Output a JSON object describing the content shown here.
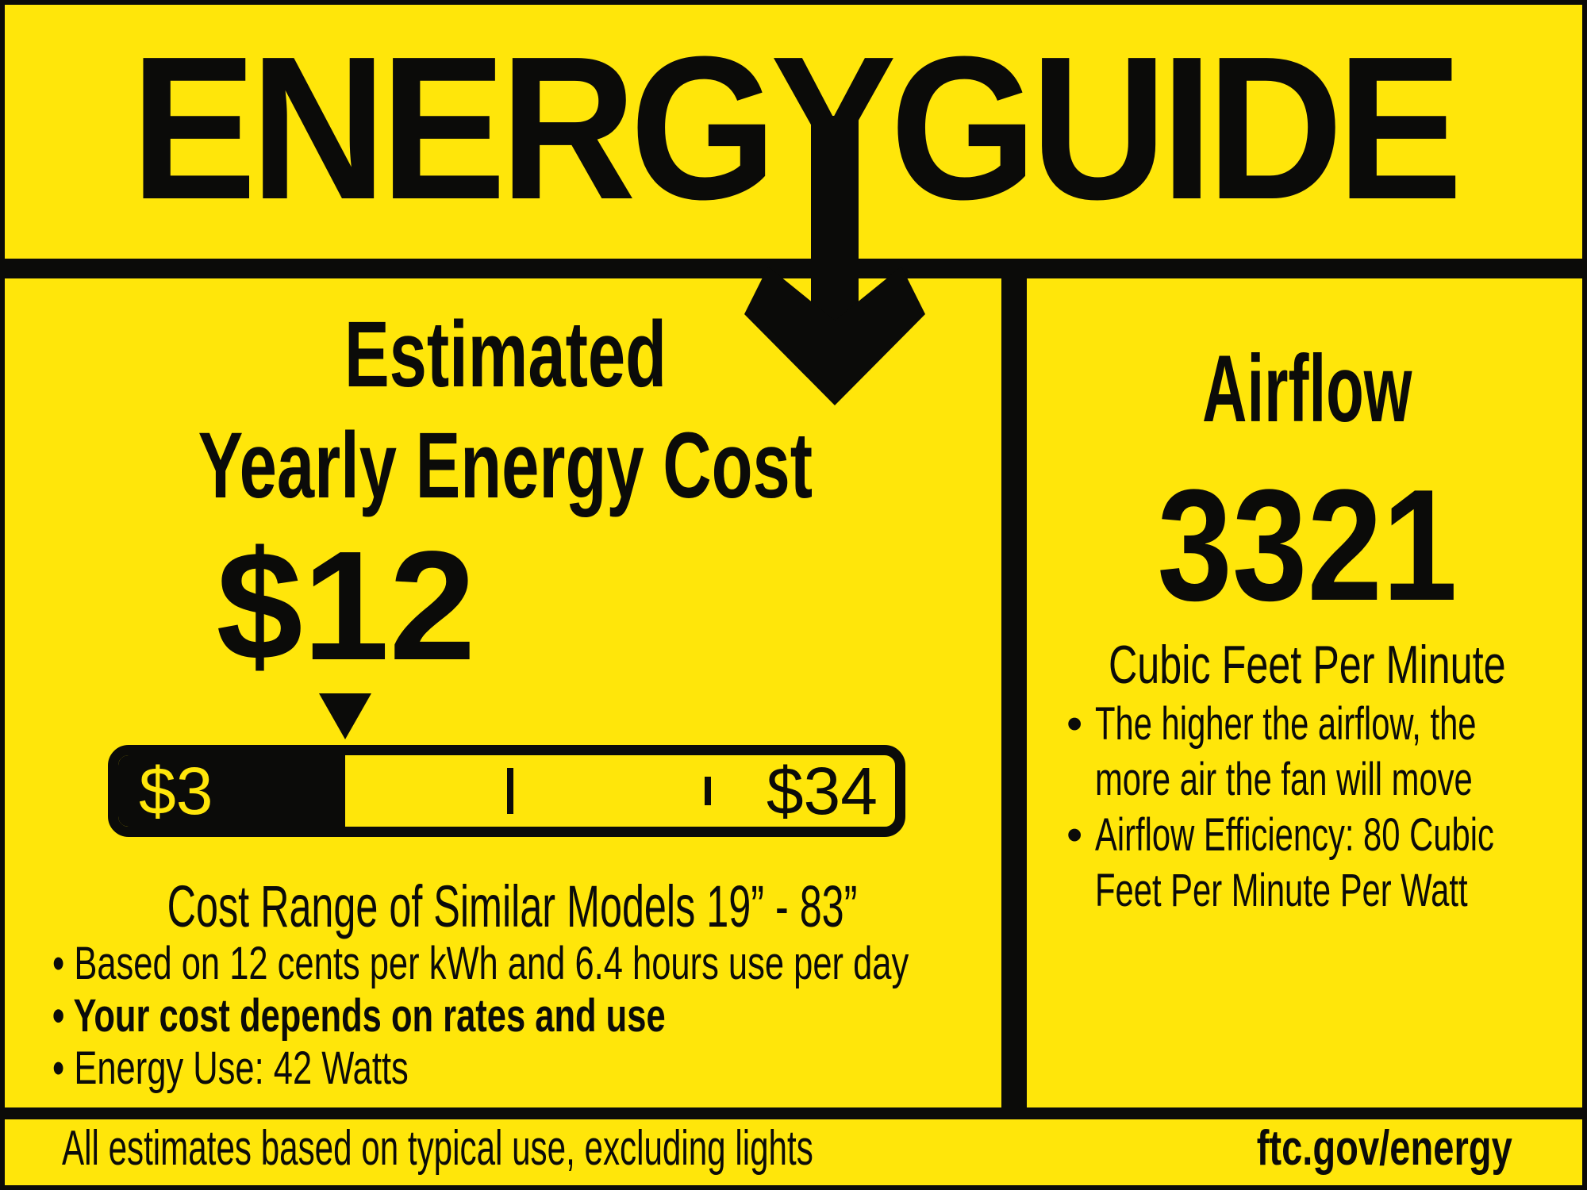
{
  "colors": {
    "yellow": "#FFE60A",
    "black": "#0B0B09"
  },
  "header": {
    "logo_text": "ENERGYGUIDE"
  },
  "left_panel": {
    "title_line1": "Estimated",
    "title_line2": "Yearly Energy Cost",
    "estimated_cost": "$12",
    "range_bar": {
      "min_label": "$3",
      "max_label": "$34",
      "fill_percent": 29.2,
      "ticks": [
        {
          "percent": 50,
          "size": "tall"
        },
        {
          "percent": 75.5,
          "size": "short"
        }
      ]
    },
    "range_caption": "Cost Range of Similar Models 19” - 83”",
    "bullet_char": "•",
    "bullets": [
      {
        "text": "Based on 12 cents per kWh and 6.4 hours use per day",
        "bold": false
      },
      {
        "text": "Your cost depends on rates and use",
        "bold": true
      },
      {
        "text": "Energy Use: 42 Watts",
        "bold": false
      }
    ]
  },
  "right_panel": {
    "title": "Airflow",
    "value": "3321",
    "unit": "Cubic Feet Per Minute",
    "bullets": [
      "The higher the airflow, the\nmore air the fan will move",
      "Airflow Efficiency: 80 Cubic\nFeet Per Minute Per Watt"
    ]
  },
  "footer": {
    "left_text": "All estimates based on typical use, excluding lights",
    "right_text": "ftc.gov/energy"
  }
}
